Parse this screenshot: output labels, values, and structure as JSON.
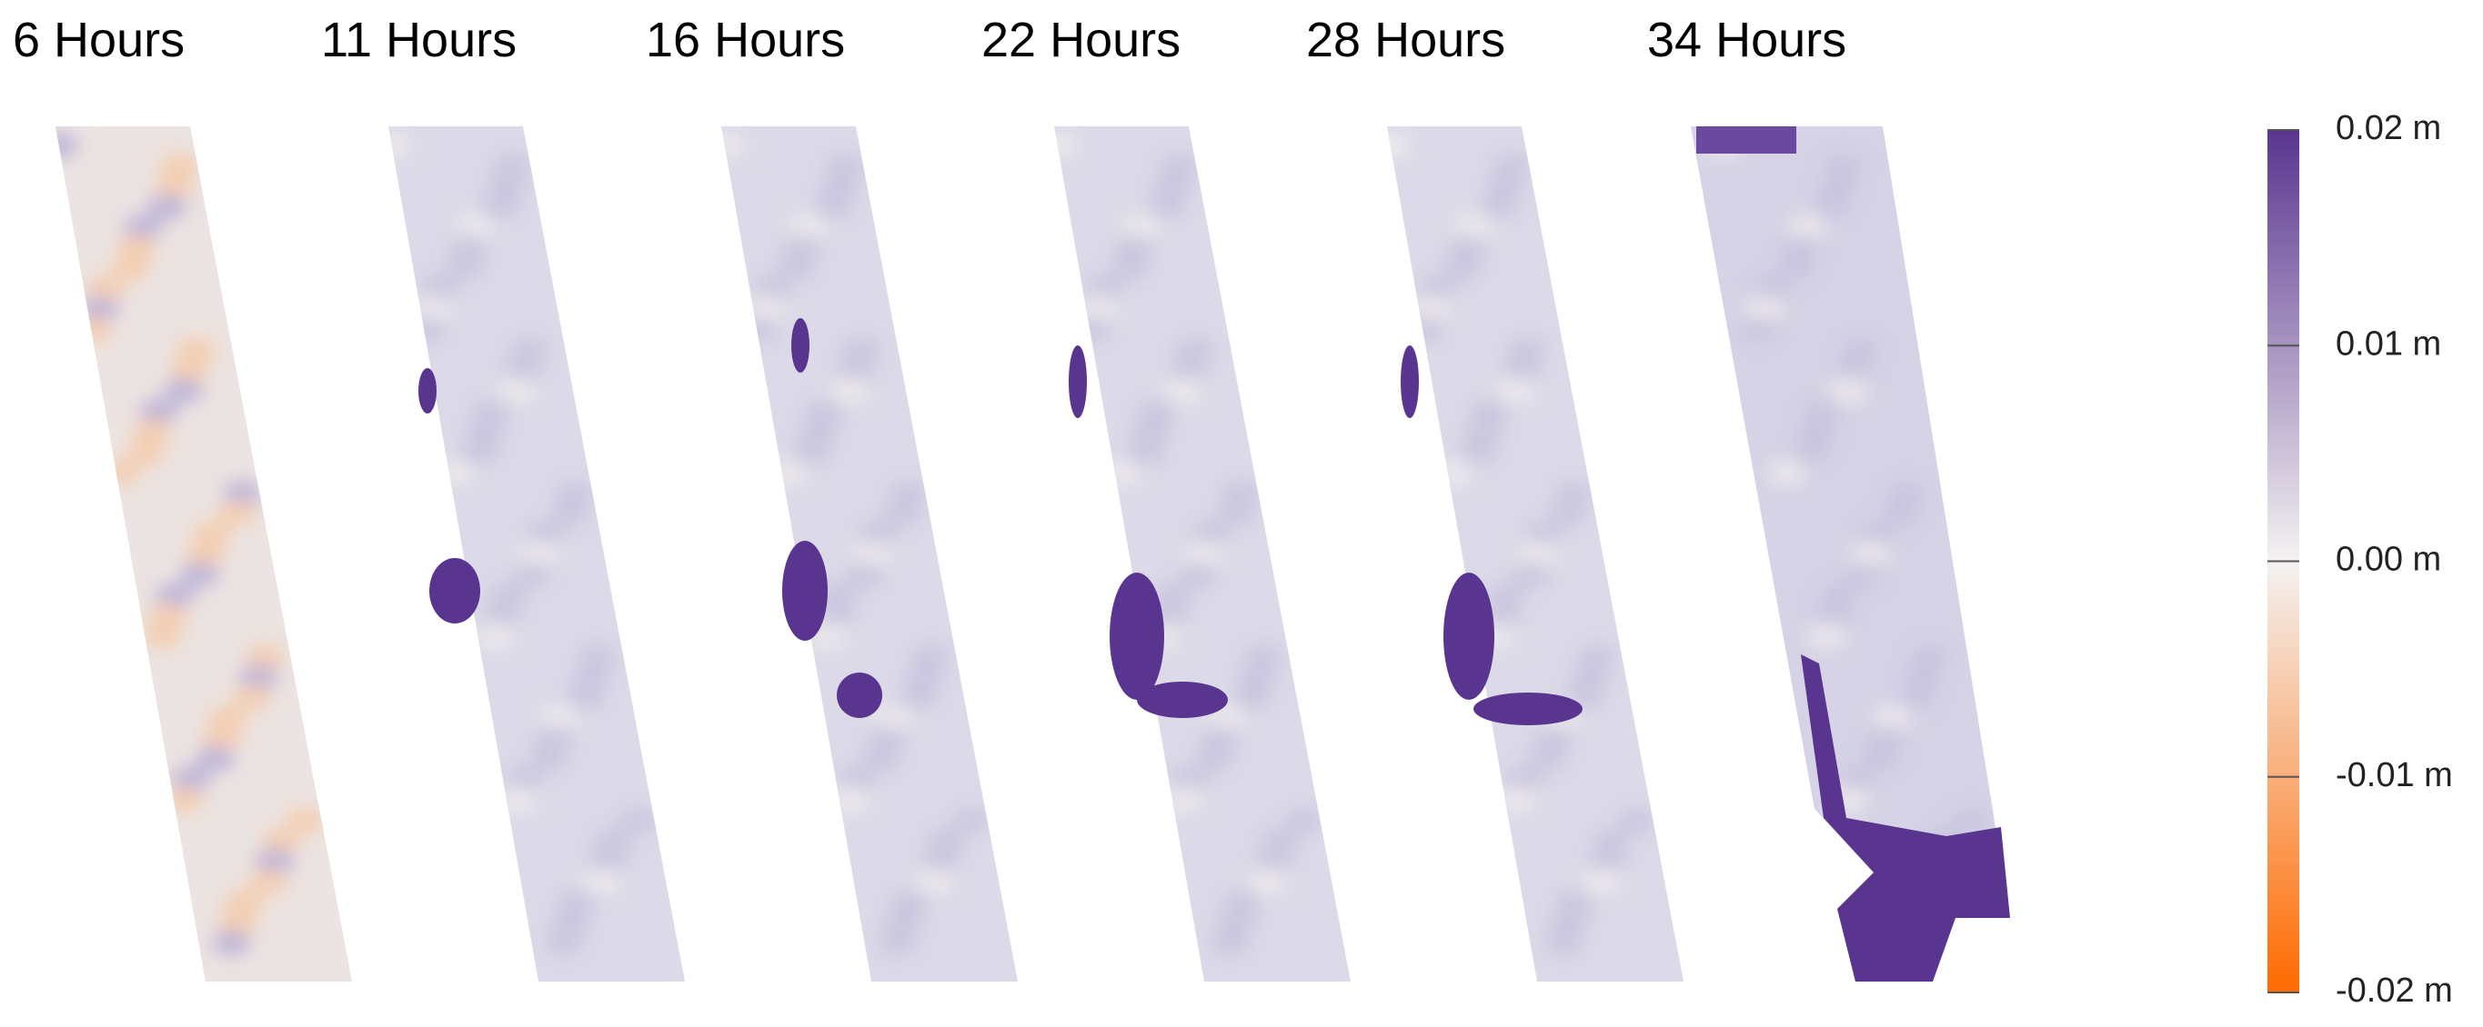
{
  "panels": [
    {
      "title": "6 Hours"
    },
    {
      "title": "11 Hours"
    },
    {
      "title": "16 Hours"
    },
    {
      "title": "22 Hours"
    },
    {
      "title": "28 Hours"
    },
    {
      "title": "34 Hours"
    }
  ],
  "colorbar": {
    "lim": [
      -0.02,
      0.02
    ],
    "colors": [
      "#ff6a00",
      "#f4f2f2",
      "#5a3590"
    ],
    "ticks": [
      {
        "value": 0.02,
        "label": "0.02 m"
      },
      {
        "value": 0.01,
        "label": "0.01 m"
      },
      {
        "value": 0,
        "label": "0.00 m"
      },
      {
        "value": -0.01,
        "label": "-0.01 m"
      },
      {
        "value": -0.02,
        "label": "-0.02 m"
      }
    ]
  }
}
